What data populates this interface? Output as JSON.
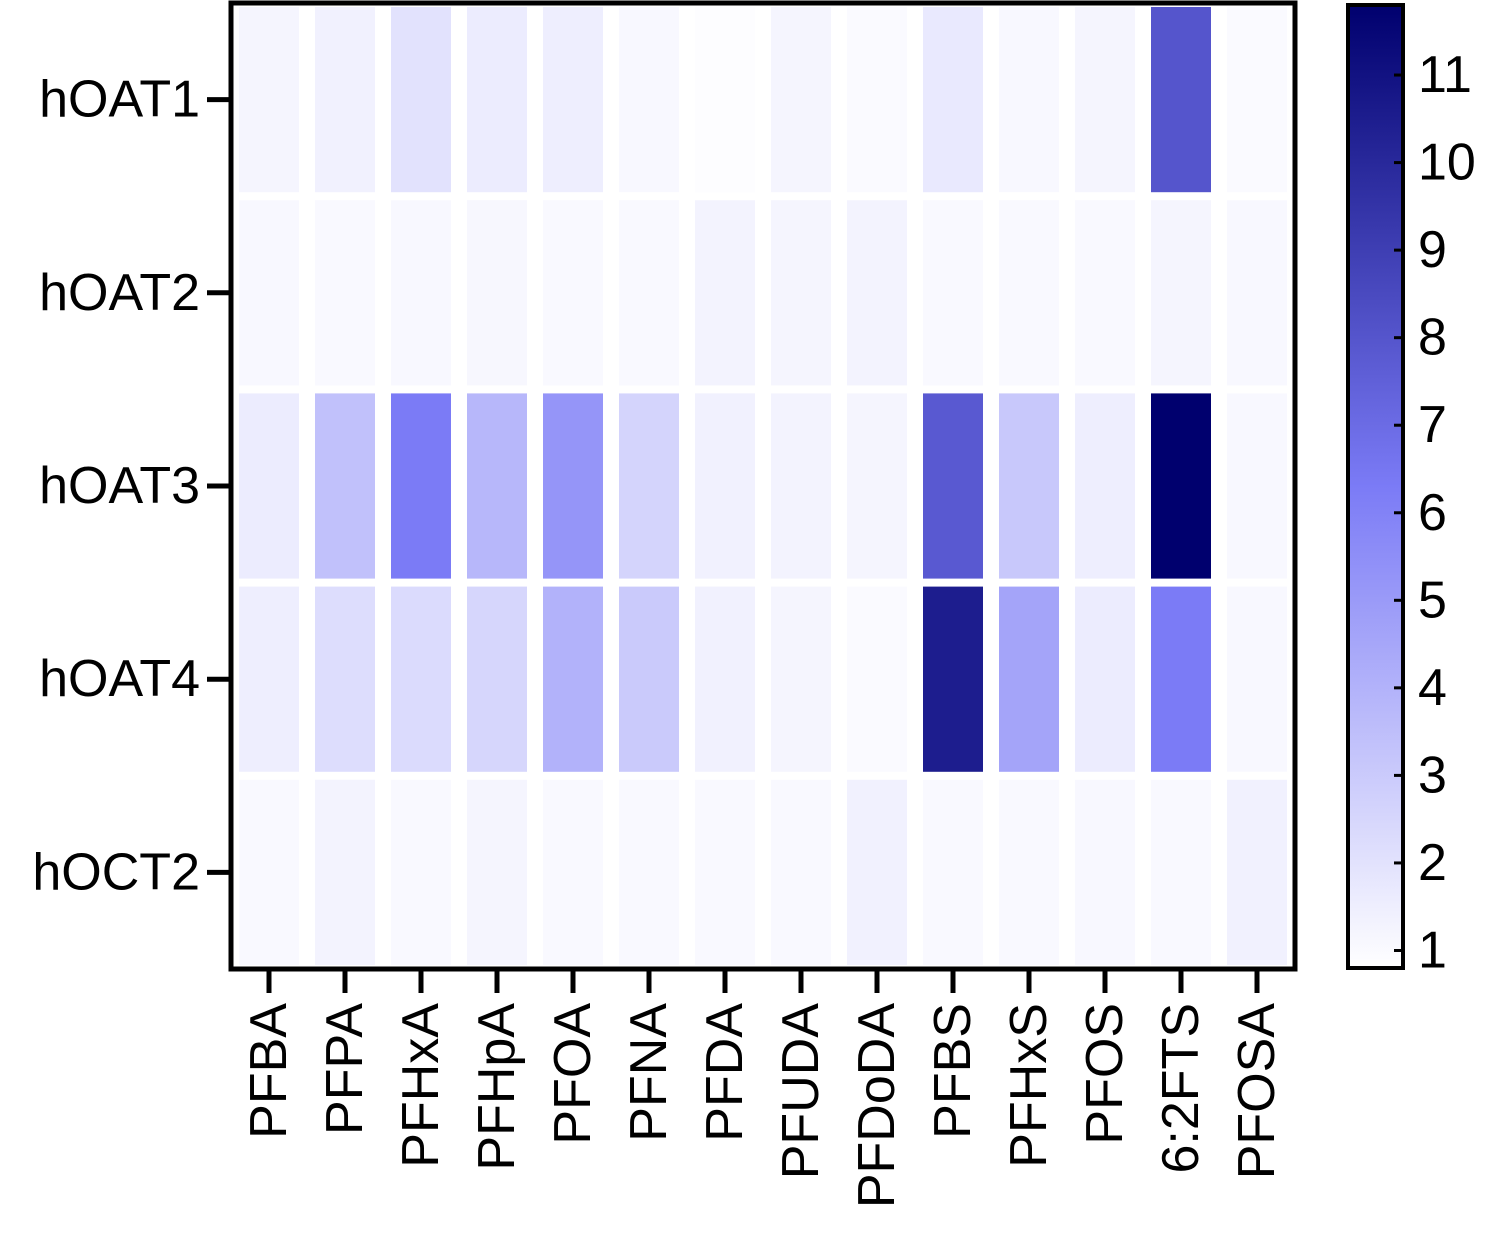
{
  "chart_data": {
    "type": "heatmap",
    "title": "",
    "xlabel": "",
    "ylabel": "",
    "x_categories": [
      "PFBA",
      "PFPA",
      "PFHxA",
      "PFHpA",
      "PFOA",
      "PFNA",
      "PFDA",
      "PFUDA",
      "PFDoDA",
      "PFBS",
      "PFHxS",
      "PFOS",
      "6:2FTS",
      "PFOSA"
    ],
    "y_categories": [
      "hOAT1",
      "hOAT2",
      "hOAT3",
      "hOAT4",
      "hOCT2"
    ],
    "values": [
      [
        1.2,
        1.4,
        2.0,
        1.6,
        1.5,
        1.1,
        0.9,
        1.2,
        1.0,
        1.7,
        1.1,
        1.2,
        8.0,
        1.0
      ],
      [
        1.1,
        1.05,
        1.1,
        1.15,
        1.05,
        1.05,
        1.3,
        1.2,
        1.3,
        1.05,
        1.05,
        1.05,
        1.2,
        1.1
      ],
      [
        1.6,
        3.4,
        6.3,
        3.8,
        5.2,
        2.6,
        1.4,
        1.3,
        1.2,
        7.8,
        3.1,
        1.5,
        11.8,
        1.1
      ],
      [
        1.5,
        2.2,
        2.3,
        2.5,
        4.0,
        3.0,
        1.4,
        1.2,
        1.0,
        10.5,
        4.6,
        1.6,
        6.3,
        1.1
      ],
      [
        1.05,
        1.3,
        1.05,
        1.2,
        1.05,
        1.05,
        1.05,
        1.05,
        1.4,
        1.05,
        1.05,
        1.1,
        1.05,
        1.4
      ]
    ],
    "colorbar": {
      "min": 0.8,
      "max": 11.8,
      "ticks": [
        1,
        2,
        3,
        4,
        5,
        6,
        7,
        8,
        9,
        10,
        11
      ],
      "low_color": "#ffffff",
      "mid_color": "#7b7bf6",
      "high_color": "#00006e"
    },
    "grid": false,
    "legend": "colorbar-right"
  }
}
